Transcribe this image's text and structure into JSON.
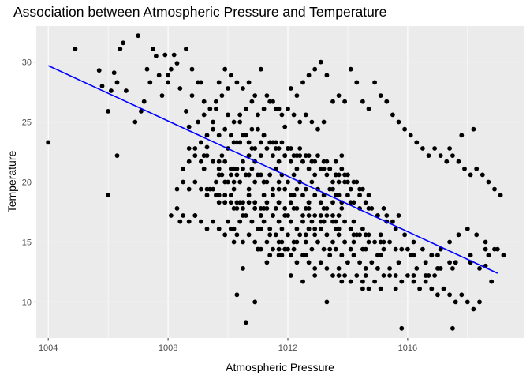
{
  "chart_data": {
    "type": "scatter",
    "title": "Association between Atmospheric Pressure and Temperature",
    "xlabel": "Atmospheric Pressure",
    "ylabel": "Temperature",
    "xlim": [
      1003.6,
      1019.9
    ],
    "ylim": [
      7.0,
      33.0
    ],
    "x_ticks": [
      1004,
      1008,
      1012,
      1016
    ],
    "y_ticks": [
      10,
      15,
      20,
      25,
      30
    ],
    "grid": true,
    "legend": "none",
    "background_color": "#ebebeb",
    "point_color": "#000000",
    "trend_color": "#0000ff",
    "trend_line": {
      "x": [
        1004.0,
        1019.0
      ],
      "y": [
        29.7,
        12.4
      ]
    },
    "points": {
      "x": [
        1004.0,
        1004.9,
        1005.7,
        1005.8,
        1006.0,
        1006.0,
        1006.1,
        1006.2,
        1006.3,
        1006.3,
        1006.4,
        1006.5,
        1006.6,
        1006.9,
        1007.0,
        1007.1,
        1007.2,
        1007.3,
        1007.4,
        1007.5,
        1007.6,
        1007.7,
        1007.8,
        1007.9,
        1008.0,
        1008.1,
        1008.2,
        1008.3,
        1008.4,
        1008.6,
        1008.8,
        1009.0,
        1008.6,
        1008.7,
        1008.9,
        1009.1,
        1009.3,
        1009.5,
        1009.7,
        1009.9,
        1010.1,
        1010.3,
        1010.5,
        1010.7,
        1010.9,
        1011.1,
        1011.3,
        1011.5,
        1011.7,
        1011.9,
        1012.1,
        1012.3,
        1012.5,
        1012.7,
        1012.9,
        1013.1,
        1013.3,
        1013.5,
        1013.7,
        1013.9,
        1014.1,
        1014.3,
        1014.5,
        1014.7,
        1014.9,
        1015.1,
        1015.3,
        1015.5,
        1015.7,
        1015.9,
        1016.1,
        1016.3,
        1016.5,
        1016.7,
        1016.9,
        1017.1,
        1017.3,
        1017.5,
        1017.7,
        1017.9,
        1018.1,
        1018.3,
        1018.5,
        1018.7,
        1018.9,
        1019.1,
        1009.5,
        1009.8,
        1010.0,
        1010.2,
        1010.4,
        1010.6,
        1010.8,
        1011.0,
        1011.2,
        1011.4,
        1011.6,
        1011.8,
        1012.0,
        1012.2,
        1012.4,
        1012.6,
        1012.8,
        1013.0,
        1013.2,
        1013.4,
        1013.6,
        1013.8,
        1014.0,
        1014.2,
        1009.9,
        1010.1,
        1010.3,
        1010.5,
        1010.7,
        1010.9,
        1011.1,
        1011.3,
        1011.5,
        1011.7,
        1011.9,
        1012.1,
        1012.3,
        1012.5,
        1012.7,
        1012.9,
        1013.1,
        1013.3,
        1013.5,
        1013.7,
        1013.9,
        1014.1,
        1014.3,
        1014.5,
        1014.7,
        1009.4,
        1009.6,
        1009.8,
        1010.0,
        1010.2,
        1010.4,
        1010.6,
        1010.8,
        1011.0,
        1011.2,
        1011.4,
        1011.6,
        1011.8,
        1012.0,
        1012.2,
        1012.4,
        1012.6,
        1012.8,
        1013.0,
        1013.2,
        1013.4,
        1013.6,
        1013.8,
        1014.0,
        1014.2,
        1014.4,
        1014.6,
        1014.8,
        1015.0,
        1015.2,
        1009.7,
        1009.9,
        1010.1,
        1010.3,
        1010.5,
        1010.7,
        1010.9,
        1011.1,
        1011.3,
        1011.5,
        1011.7,
        1011.9,
        1012.1,
        1012.3,
        1012.5,
        1012.7,
        1012.9,
        1013.1,
        1013.3,
        1013.5,
        1013.7,
        1013.9,
        1014.1,
        1014.3,
        1014.5,
        1014.7,
        1014.9,
        1015.1,
        1015.3,
        1015.5,
        1015.7,
        1010.0,
        1010.2,
        1010.4,
        1010.6,
        1010.8,
        1011.0,
        1011.2,
        1011.4,
        1011.6,
        1011.8,
        1012.0,
        1012.2,
        1012.4,
        1012.6,
        1012.8,
        1013.0,
        1013.2,
        1013.4,
        1013.6,
        1013.8,
        1014.0,
        1014.2,
        1014.4,
        1014.6,
        1014.8,
        1015.0,
        1015.2,
        1015.4,
        1015.6,
        1015.8,
        1016.0,
        1016.2,
        1016.4,
        1016.6,
        1016.8,
        1017.0,
        1017.2,
        1017.4,
        1017.6,
        1017.8,
        1018.0,
        1018.2,
        1018.4,
        1018.6,
        1018.8,
        1019.0,
        1010.3,
        1010.5,
        1010.9,
        1011.3,
        1011.7,
        1012.1,
        1012.5,
        1012.9,
        1013.3,
        1013.7,
        1014.1,
        1014.5,
        1015.0,
        1015.4,
        1015.8,
        1016.2,
        1016.6,
        1017.0,
        1017.4,
        1017.8,
        1018.2,
        1009.0,
        1009.2,
        1009.4,
        1009.6,
        1009.8,
        1010.0,
        1010.2,
        1010.4,
        1010.6,
        1010.8,
        1011.0,
        1011.2,
        1011.4,
        1011.6,
        1011.8,
        1012.0,
        1012.2,
        1012.4,
        1012.6,
        1012.8,
        1013.0,
        1013.2,
        1013.4,
        1013.6,
        1013.8,
        1008.9,
        1009.1,
        1009.3,
        1009.5,
        1009.7,
        1009.9,
        1010.1,
        1010.3,
        1010.5,
        1010.7,
        1010.9,
        1011.1,
        1011.3,
        1011.5,
        1011.7,
        1011.9,
        1012.1,
        1012.3,
        1012.5,
        1012.7,
        1012.9,
        1013.1,
        1013.3,
        1013.5,
        1013.7,
        1013.9,
        1008.5,
        1008.7,
        1008.9,
        1009.1,
        1009.3,
        1009.5,
        1009.7,
        1009.9,
        1010.1,
        1010.3,
        1010.5,
        1010.7,
        1010.9,
        1011.1,
        1011.3,
        1011.5,
        1011.7,
        1011.9,
        1012.1,
        1012.3,
        1012.5,
        1012.7,
        1012.9,
        1013.1,
        1013.3,
        1013.5,
        1013.7,
        1008.3,
        1008.5,
        1008.7,
        1008.9,
        1009.1,
        1009.3,
        1009.5,
        1009.7,
        1009.9,
        1010.1,
        1010.3,
        1010.5,
        1010.7,
        1010.9,
        1011.1,
        1011.3,
        1011.5,
        1011.7,
        1011.9,
        1012.1,
        1012.3,
        1012.5,
        1012.7,
        1012.9,
        1013.1,
        1013.3,
        1013.5,
        1013.7,
        1013.9,
        1014.1,
        1008.1,
        1008.3,
        1008.5,
        1008.7,
        1008.9,
        1009.1,
        1009.3,
        1009.5,
        1009.7,
        1009.9,
        1010.1,
        1010.3,
        1010.5,
        1010.7,
        1010.9,
        1011.1,
        1011.3,
        1011.5,
        1011.7,
        1011.9,
        1012.1,
        1012.3,
        1012.5,
        1012.7,
        1012.9,
        1013.1,
        1013.3,
        1013.5,
        1013.7,
        1013.9,
        1014.1,
        1014.3,
        1014.5,
        1014.7,
        1014.9,
        1015.1,
        1010.6,
        1011.0,
        1011.4,
        1011.8,
        1012.2,
        1012.6,
        1013.0,
        1013.4,
        1013.8,
        1014.2,
        1014.6,
        1015.0,
        1015.4,
        1015.8,
        1016.2,
        1016.6,
        1017.0,
        1017.4,
        1009.3,
        1009.6,
        1009.9,
        1010.2,
        1010.5,
        1010.8,
        1011.1,
        1011.4,
        1011.7,
        1012.0,
        1012.3,
        1012.6,
        1012.9,
        1013.2,
        1013.5,
        1013.8,
        1014.1,
        1014.4,
        1014.7,
        1015.0,
        1015.3,
        1015.6,
        1015.9,
        1016.2,
        1016.5,
        1016.8,
        1017.1,
        1017.4,
        1017.7,
        1018.0,
        1018.3,
        1018.6,
        1018.9,
        1019.2,
        1010.9,
        1011.5,
        1012.1,
        1012.7,
        1013.3,
        1013.9,
        1014.5,
        1015.1,
        1015.7,
        1016.3,
        1016.9,
        1017.5,
        1018.1,
        1018.7,
        1010.4,
        1011.2,
        1012.0,
        1012.8,
        1013.6,
        1014.4,
        1015.2,
        1016.0,
        1016.8,
        1017.6,
        1018.4,
        1010.2,
        1011.0,
        1011.8,
        1013.8,
        1014.6,
        1015.6,
        1016.7,
        1017.5,
        1011.1,
        1011.6,
        1012.1,
        1012.6,
        1013.1,
        1013.6,
        1014.1,
        1014.6,
        1015.1,
        1015.6,
        1016.1,
        1016.6,
        1017.1,
        1017.6,
        1018.1,
        1018.6,
        1009.2,
        1009.7,
        1010.2,
        1010.7,
        1011.2,
        1011.7,
        1012.2,
        1012.7,
        1013.2,
        1013.7,
        1014.2,
        1014.7,
        1015.2,
        1008.7,
        1009.2,
        1009.7,
        1010.2,
        1010.7,
        1011.2,
        1011.7,
        1012.2,
        1012.7,
        1013.2,
        1013.7,
        1014.2,
        1008.0,
        1008.4,
        1008.8,
        1009.2,
        1009.6,
        1010.0,
        1010.4,
        1010.8,
        1011.2,
        1011.6,
        1012.0,
        1012.4,
        1012.8,
        1013.2,
        1013.6,
        1014.0,
        1014.4
      ],
      "y": [
        23.3,
        31.1,
        29.3,
        28.0,
        18.9,
        25.9,
        27.6,
        29.1,
        28.3,
        22.2,
        31.1,
        31.6,
        27.6,
        25.0,
        32.2,
        25.9,
        26.7,
        29.4,
        28.3,
        31.1,
        30.5,
        28.9,
        27.2,
        30.6,
        28.9,
        29.4,
        30.6,
        29.9,
        16.7,
        31.1,
        29.4,
        28.3,
        25.9,
        24.6,
        17.2,
        28.3,
        22.9,
        25.0,
        28.3,
        29.4,
        28.9,
        28.3,
        27.8,
        28.3,
        27.2,
        29.4,
        27.2,
        26.7,
        26.1,
        24.6,
        27.8,
        27.2,
        28.3,
        28.9,
        29.4,
        30.0,
        28.9,
        26.7,
        27.2,
        26.7,
        29.4,
        28.3,
        26.7,
        26.1,
        28.3,
        27.2,
        26.7,
        25.6,
        25.0,
        24.4,
        23.9,
        23.3,
        22.8,
        22.2,
        22.8,
        22.2,
        21.7,
        22.2,
        21.7,
        21.1,
        20.6,
        21.1,
        20.6,
        20.0,
        19.4,
        18.9,
        21.7,
        22.2,
        22.8,
        23.3,
        23.3,
        23.9,
        22.8,
        24.4,
        23.9,
        23.3,
        22.8,
        23.3,
        22.8,
        22.2,
        22.8,
        22.2,
        21.7,
        22.2,
        21.7,
        21.1,
        20.6,
        21.1,
        20.6,
        20.0,
        20.0,
        20.6,
        21.1,
        21.7,
        22.2,
        21.7,
        22.2,
        22.8,
        22.2,
        21.7,
        22.2,
        21.7,
        21.1,
        21.7,
        21.1,
        20.6,
        21.1,
        20.6,
        20.0,
        20.6,
        20.0,
        19.4,
        20.0,
        19.4,
        18.9,
        19.4,
        20.0,
        20.6,
        20.0,
        19.4,
        20.0,
        20.6,
        21.1,
        20.6,
        20.0,
        20.6,
        21.1,
        20.6,
        20.0,
        20.6,
        20.0,
        19.4,
        20.0,
        19.4,
        18.9,
        19.4,
        18.9,
        18.3,
        18.9,
        18.3,
        17.8,
        18.3,
        17.8,
        17.2,
        17.8,
        18.3,
        18.9,
        18.3,
        17.8,
        18.3,
        18.9,
        18.3,
        17.8,
        18.3,
        18.9,
        18.3,
        17.8,
        18.3,
        17.8,
        17.2,
        17.8,
        17.2,
        16.7,
        17.2,
        16.7,
        16.1,
        16.7,
        16.1,
        15.6,
        16.1,
        15.6,
        15.0,
        15.6,
        17.2,
        16.7,
        17.2,
        16.7,
        16.1,
        16.7,
        17.2,
        16.7,
        16.1,
        16.7,
        16.1,
        15.6,
        16.1,
        15.6,
        15.0,
        15.6,
        15.0,
        14.4,
        15.0,
        14.4,
        13.9,
        14.4,
        13.9,
        13.3,
        13.9,
        13.3,
        12.8,
        13.3,
        12.8,
        12.2,
        12.8,
        12.2,
        11.7,
        12.2,
        11.7,
        11.1,
        11.7,
        11.1,
        10.6,
        11.1,
        10.6,
        10.0,
        10.6,
        10.0,
        9.4,
        10.0,
        13.0,
        11.7,
        14.4,
        10.6,
        12.8,
        10.0,
        13.3,
        14.4,
        12.2,
        11.7,
        12.2,
        10.0,
        12.2,
        11.7,
        11.1,
        12.8,
        12.2,
        7.8,
        12.2,
        13.3,
        12.8,
        22.8,
        23.9,
        24.4,
        25.0,
        25.6,
        26.1,
        26.7,
        27.2,
        27.8,
        25.0,
        25.6,
        26.1,
        26.7,
        25.6,
        26.1,
        26.7,
        26.1,
        25.6,
        26.1,
        25.6,
        25.0,
        25.6,
        25.0,
        24.4,
        25.0,
        21.1,
        21.7,
        22.2,
        22.8,
        23.3,
        23.9,
        24.4,
        23.9,
        24.4,
        23.9,
        23.3,
        23.9,
        23.3,
        22.8,
        23.3,
        22.8,
        23.3,
        22.8,
        22.2,
        22.8,
        22.2,
        21.7,
        22.2,
        21.7,
        21.1,
        21.7,
        19.4,
        20.0,
        20.6,
        21.1,
        21.7,
        22.2,
        21.7,
        22.2,
        21.7,
        21.1,
        21.7,
        21.1,
        20.6,
        21.1,
        20.6,
        20.0,
        20.6,
        20.0,
        19.4,
        20.0,
        19.4,
        18.9,
        19.4,
        18.9,
        18.3,
        18.9,
        18.3,
        17.8,
        18.3,
        18.9,
        19.4,
        20.0,
        19.4,
        20.0,
        19.4,
        18.9,
        19.4,
        18.9,
        18.3,
        18.9,
        18.3,
        17.8,
        18.3,
        17.8,
        17.2,
        17.8,
        17.2,
        16.7,
        17.2,
        16.7,
        16.1,
        16.7,
        16.1,
        15.6,
        16.1,
        15.6,
        15.0,
        15.6,
        15.0,
        14.4,
        17.2,
        17.8,
        17.2,
        16.7,
        17.2,
        16.7,
        16.1,
        16.7,
        16.1,
        15.6,
        16.1,
        15.6,
        15.0,
        15.6,
        15.0,
        14.4,
        15.0,
        14.4,
        13.9,
        14.4,
        13.9,
        13.3,
        13.9,
        13.3,
        12.8,
        13.3,
        12.8,
        12.2,
        12.8,
        12.2,
        11.7,
        12.2,
        11.7,
        11.1,
        11.7,
        11.1,
        8.3,
        14.4,
        13.9,
        15.0,
        14.4,
        13.9,
        15.0,
        14.4,
        13.9,
        15.0,
        14.4,
        13.9,
        15.0,
        14.4,
        13.9,
        12.2,
        13.9,
        13.3,
        19.4,
        18.9,
        18.3,
        17.8,
        17.2,
        16.7,
        16.1,
        15.6,
        15.0,
        14.4,
        15.0,
        15.6,
        16.1,
        16.7,
        17.2,
        17.8,
        18.3,
        18.9,
        17.8,
        17.2,
        16.7,
        16.1,
        15.6,
        15.0,
        14.4,
        13.9,
        14.4,
        15.0,
        15.6,
        16.1,
        15.6,
        15.0,
        14.4,
        13.9,
        17.8,
        17.2,
        16.7,
        16.1,
        15.6,
        15.0,
        14.4,
        13.9,
        13.3,
        12.8,
        12.2,
        12.8,
        13.3,
        13.9,
        18.3,
        17.8,
        17.2,
        16.7,
        16.1,
        15.6,
        15.0,
        14.4,
        13.9,
        13.3,
        12.8,
        15.0,
        14.4,
        13.9,
        11.7,
        12.2,
        11.1,
        12.2,
        7.8,
        17.2,
        17.8,
        18.3,
        17.8,
        17.2,
        16.7,
        16.1,
        15.6,
        15.0,
        14.4,
        13.9,
        13.3,
        12.8,
        13.3,
        13.9,
        14.4,
        21.1,
        20.6,
        20.0,
        19.4,
        18.9,
        18.3,
        17.8,
        17.2,
        16.7,
        16.1,
        15.6,
        15.0,
        14.4,
        22.8,
        22.2,
        21.7,
        21.1,
        20.6,
        20.0,
        19.4,
        18.9,
        18.3,
        17.8,
        17.2,
        16.7,
        28.3,
        27.8,
        27.2,
        26.7,
        26.1,
        25.6,
        25.0,
        24.4,
        23.9,
        23.3,
        22.8,
        22.2,
        21.7,
        21.1,
        20.6,
        20.0,
        19.4
      ]
    }
  }
}
